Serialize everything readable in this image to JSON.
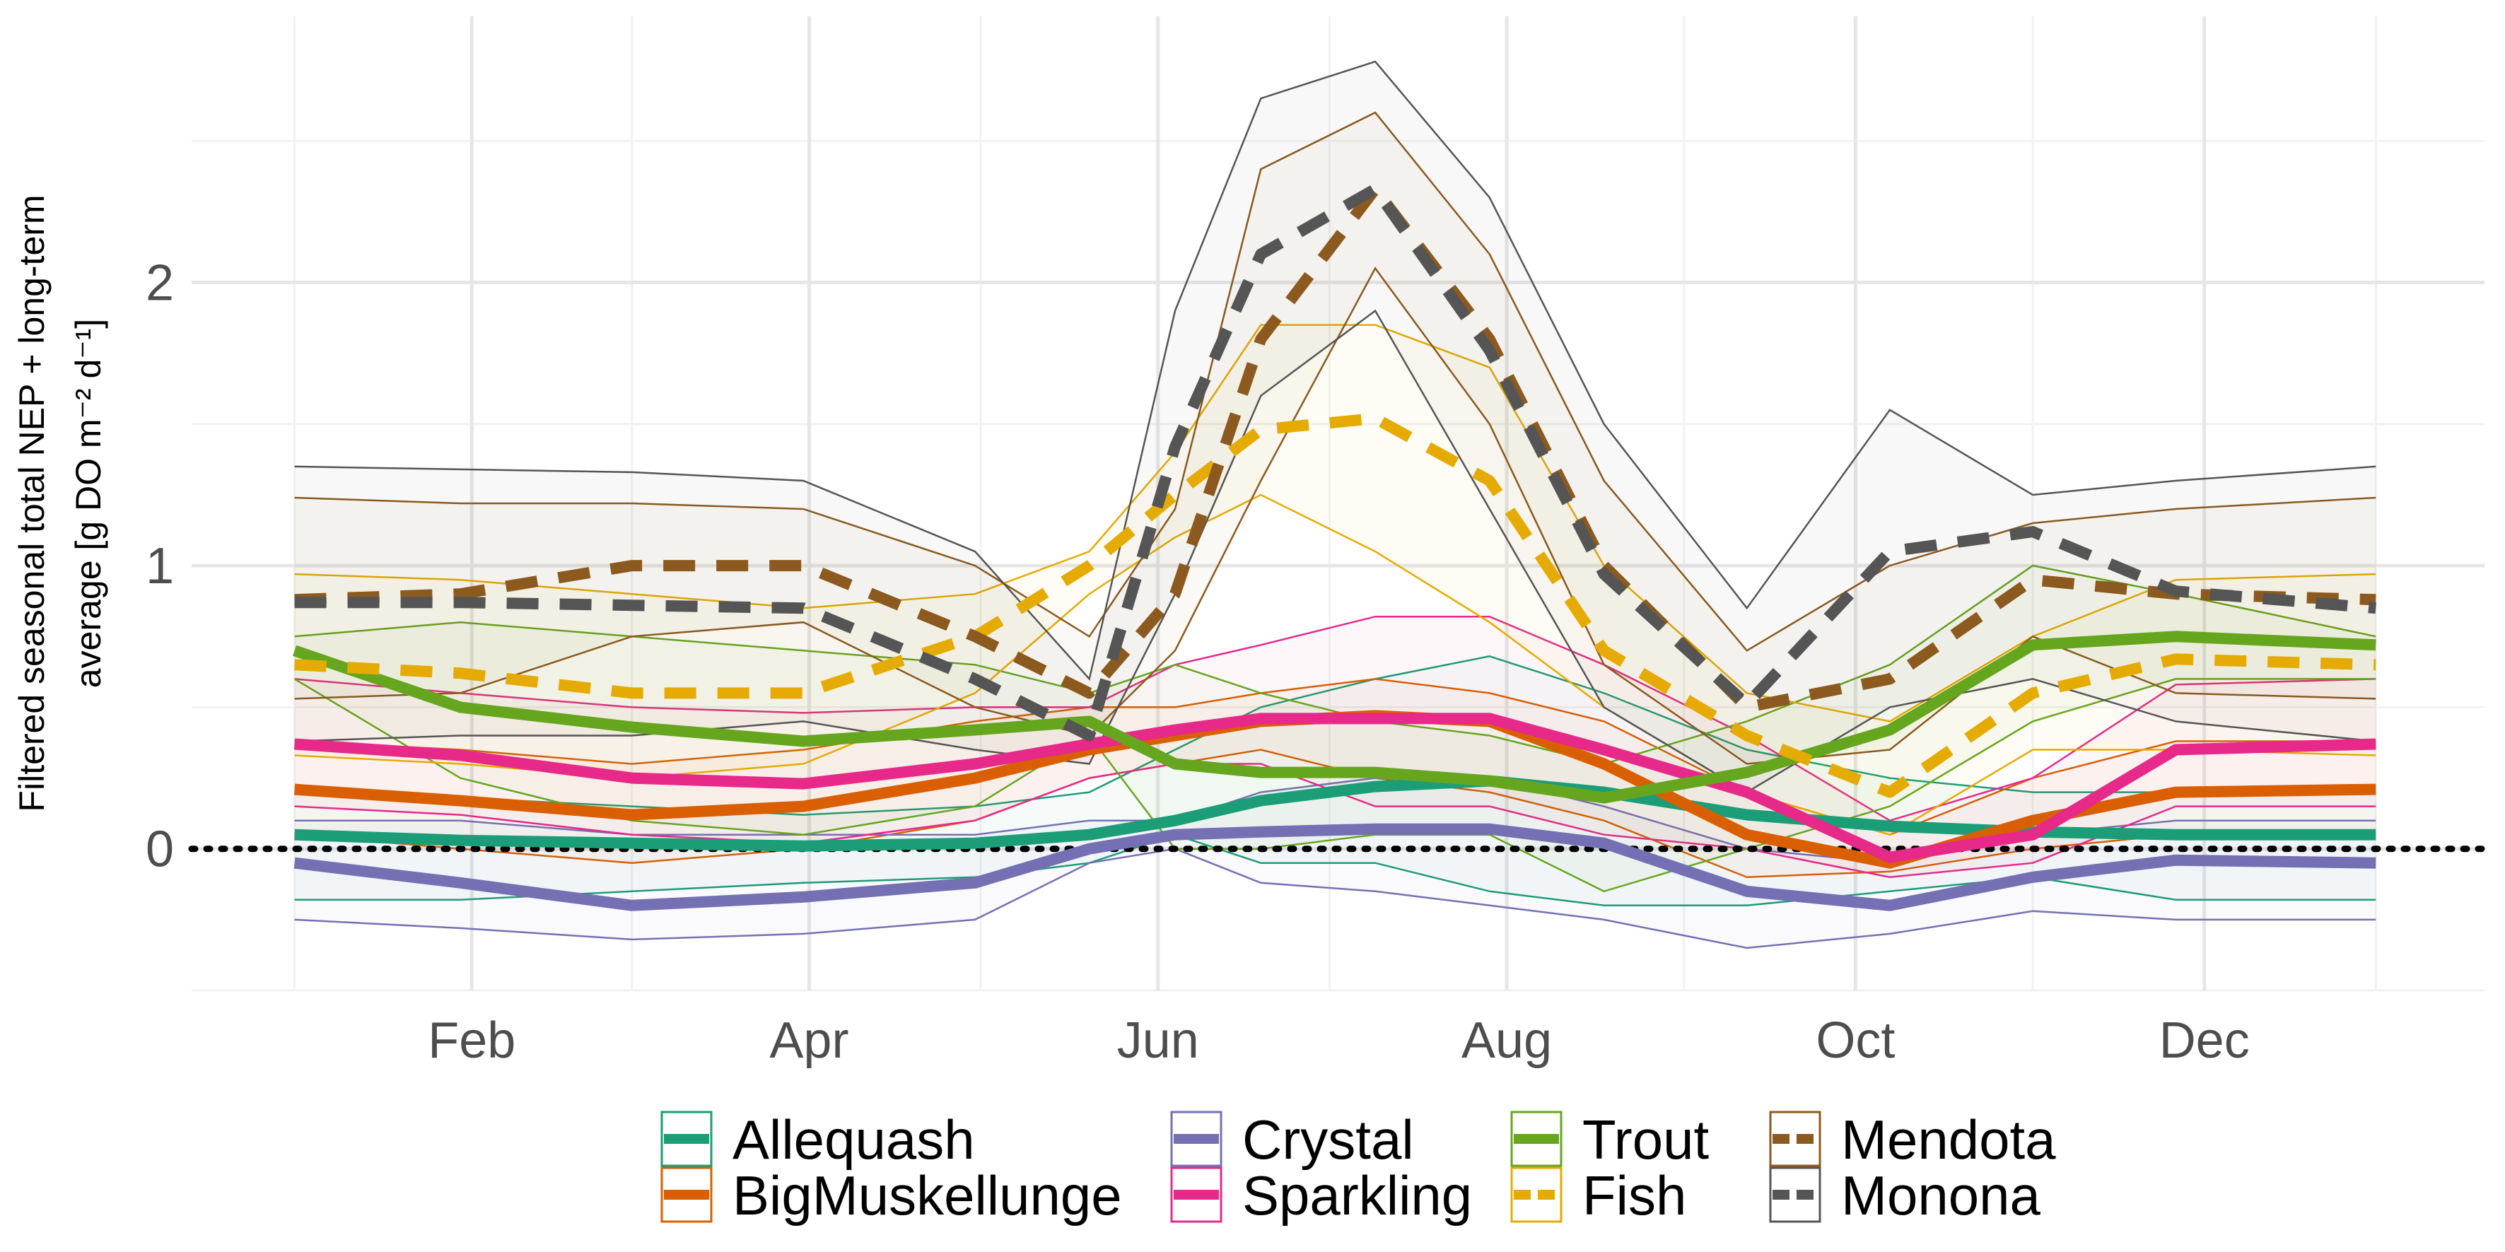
{
  "chart_data": {
    "type": "line",
    "y_label": [
      "Filtered seasonal total NEP + long-term",
      "average [g DO m⁻² d⁻¹]"
    ],
    "x": [
      1,
      30,
      60,
      90,
      120,
      140,
      155,
      170,
      190,
      210,
      230,
      255,
      280,
      305,
      330,
      365
    ],
    "xlim": [
      -17,
      384
    ],
    "xticks": [
      {
        "value": 32,
        "label": "Feb"
      },
      {
        "value": 91,
        "label": "Apr"
      },
      {
        "value": 152,
        "label": "Jun"
      },
      {
        "value": 213,
        "label": "Aug"
      },
      {
        "value": 274,
        "label": "Oct"
      },
      {
        "value": 335,
        "label": "Dec"
      }
    ],
    "xminorticks": [
      1,
      60,
      121,
      182,
      244,
      305,
      365
    ],
    "ylim": [
      -0.5,
      2.94
    ],
    "yticks": [
      0,
      1,
      2
    ],
    "yminorticks": [
      -0.5,
      0.5,
      1.5,
      2.5
    ],
    "grid": true,
    "reference_line": 0,
    "legend": "bottom",
    "series": [
      {
        "name": "Allequash",
        "color": "#1B9E77",
        "dashed": false,
        "values": [
          0.05,
          0.03,
          0.02,
          0.01,
          0.02,
          0.05,
          0.1,
          0.17,
          0.22,
          0.24,
          0.2,
          0.12,
          0.08,
          0.06,
          0.05,
          0.05
        ],
        "upper": [
          0.2,
          0.18,
          0.15,
          0.12,
          0.15,
          0.2,
          0.35,
          0.5,
          0.6,
          0.68,
          0.55,
          0.35,
          0.25,
          0.2,
          0.2,
          0.2
        ],
        "lower": [
          -0.18,
          -0.18,
          -0.15,
          -0.12,
          -0.1,
          -0.05,
          0.05,
          -0.05,
          -0.05,
          -0.15,
          -0.2,
          -0.2,
          -0.15,
          -0.1,
          -0.18,
          -0.18
        ]
      },
      {
        "name": "BigMuskellunge",
        "color": "#D95F02",
        "dashed": false,
        "values": [
          0.21,
          0.17,
          0.12,
          0.15,
          0.25,
          0.35,
          0.4,
          0.45,
          0.47,
          0.45,
          0.3,
          0.05,
          -0.05,
          0.1,
          0.2,
          0.21
        ],
        "upper": [
          0.38,
          0.35,
          0.3,
          0.35,
          0.45,
          0.5,
          0.5,
          0.55,
          0.6,
          0.55,
          0.45,
          0.2,
          0.05,
          0.25,
          0.38,
          0.38
        ],
        "lower": [
          0.05,
          0.0,
          -0.05,
          0.0,
          0.1,
          0.25,
          0.3,
          0.35,
          0.25,
          0.2,
          0.1,
          -0.1,
          -0.08,
          0.0,
          0.05,
          0.05
        ]
      },
      {
        "name": "Crystal",
        "color": "#7570B3",
        "dashed": false,
        "values": [
          -0.05,
          -0.12,
          -0.2,
          -0.17,
          -0.12,
          0.0,
          0.05,
          0.06,
          0.07,
          0.07,
          0.02,
          -0.15,
          -0.2,
          -0.1,
          -0.04,
          -0.05
        ],
        "upper": [
          0.1,
          0.1,
          0.05,
          0.05,
          0.05,
          0.1,
          0.1,
          0.2,
          0.25,
          0.25,
          0.15,
          0.0,
          -0.05,
          0.05,
          0.1,
          0.1
        ],
        "lower": [
          -0.25,
          -0.28,
          -0.32,
          -0.3,
          -0.25,
          -0.05,
          0.0,
          -0.12,
          -0.15,
          -0.2,
          -0.25,
          -0.35,
          -0.3,
          -0.22,
          -0.25,
          -0.25
        ]
      },
      {
        "name": "Sparkling",
        "color": "#E7298A",
        "dashed": false,
        "values": [
          0.37,
          0.33,
          0.25,
          0.23,
          0.3,
          0.37,
          0.42,
          0.46,
          0.46,
          0.46,
          0.35,
          0.2,
          -0.03,
          0.05,
          0.35,
          0.37
        ],
        "upper": [
          0.6,
          0.55,
          0.5,
          0.48,
          0.5,
          0.5,
          0.65,
          0.72,
          0.82,
          0.82,
          0.65,
          0.4,
          0.1,
          0.25,
          0.58,
          0.6
        ],
        "lower": [
          0.15,
          0.12,
          0.05,
          0.02,
          0.1,
          0.25,
          0.3,
          0.3,
          0.15,
          0.15,
          0.05,
          0.0,
          -0.1,
          -0.05,
          0.15,
          0.15
        ]
      },
      {
        "name": "Trout",
        "color": "#66A61E",
        "dashed": false,
        "values": [
          0.7,
          0.5,
          0.43,
          0.38,
          0.42,
          0.45,
          0.3,
          0.27,
          0.27,
          0.24,
          0.18,
          0.27,
          0.42,
          0.72,
          0.75,
          0.72
        ],
        "upper": [
          0.75,
          0.8,
          0.75,
          0.7,
          0.65,
          0.55,
          0.65,
          0.55,
          0.45,
          0.4,
          0.3,
          0.45,
          0.65,
          1.0,
          0.9,
          0.75
        ],
        "lower": [
          0.6,
          0.25,
          0.1,
          0.05,
          0.15,
          0.4,
          0.0,
          0.0,
          0.05,
          0.05,
          -0.15,
          0.0,
          0.15,
          0.45,
          0.6,
          0.6
        ]
      },
      {
        "name": "Fish",
        "color": "#E6AB02",
        "dashed": true,
        "values": [
          0.65,
          0.62,
          0.55,
          0.55,
          0.75,
          1.0,
          1.25,
          1.48,
          1.52,
          1.3,
          0.7,
          0.4,
          0.2,
          0.55,
          0.67,
          0.65
        ],
        "upper": [
          0.97,
          0.95,
          0.9,
          0.85,
          0.9,
          1.05,
          1.4,
          1.85,
          1.85,
          1.7,
          1.0,
          0.55,
          0.45,
          0.75,
          0.95,
          0.97
        ],
        "lower": [
          0.33,
          0.3,
          0.25,
          0.3,
          0.55,
          0.9,
          1.1,
          1.25,
          1.05,
          0.8,
          0.5,
          0.2,
          0.05,
          0.35,
          0.35,
          0.33
        ]
      },
      {
        "name": "Mendota",
        "color": "#8C5A1E",
        "dashed": true,
        "values": [
          0.88,
          0.9,
          1.0,
          1.0,
          0.75,
          0.55,
          0.9,
          1.8,
          2.33,
          1.8,
          1.0,
          0.5,
          0.6,
          0.95,
          0.9,
          0.88
        ],
        "upper": [
          1.24,
          1.22,
          1.22,
          1.2,
          1.0,
          0.75,
          1.2,
          2.4,
          2.6,
          2.1,
          1.3,
          0.7,
          1.0,
          1.15,
          1.2,
          1.24
        ],
        "lower": [
          0.53,
          0.55,
          0.75,
          0.8,
          0.5,
          0.4,
          0.7,
          1.3,
          2.05,
          1.5,
          0.65,
          0.3,
          0.35,
          0.75,
          0.55,
          0.53
        ]
      },
      {
        "name": "Monona",
        "color": "#555555",
        "dashed": true,
        "values": [
          0.87,
          0.87,
          0.86,
          0.85,
          0.6,
          0.4,
          1.42,
          2.1,
          2.33,
          1.76,
          0.97,
          0.51,
          1.05,
          1.12,
          0.91,
          0.85
        ],
        "upper": [
          1.35,
          1.34,
          1.33,
          1.3,
          1.05,
          0.6,
          1.9,
          2.65,
          2.78,
          2.3,
          1.5,
          0.85,
          1.55,
          1.25,
          1.3,
          1.35
        ],
        "lower": [
          0.38,
          0.4,
          0.4,
          0.45,
          0.35,
          0.3,
          0.9,
          1.6,
          1.9,
          1.2,
          0.5,
          0.2,
          0.5,
          0.6,
          0.45,
          0.38
        ]
      }
    ]
  }
}
